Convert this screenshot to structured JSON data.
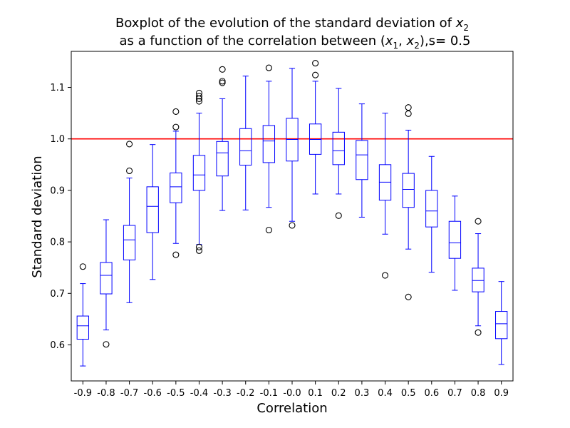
{
  "chart_data": {
    "type": "boxplot",
    "title": {
      "line1_prefix": "Boxplot of the evolution of the standard deviation of ",
      "line1_var": "x",
      "line1_sub": "2",
      "line2_prefix": "as a function of the correlation between (",
      "line2_var1": "x",
      "line2_sub1": "1",
      "line2_sep": ", ",
      "line2_var2": "x",
      "line2_sub2": "2",
      "line2_suffix": "),s= 0.5"
    },
    "xlabel": "Correlation",
    "ylabel": "Standard deviation",
    "ylim": [
      0.53,
      1.17
    ],
    "yticks": [
      0.6,
      0.7,
      0.8,
      0.9,
      1.0,
      1.1
    ],
    "ytick_labels": [
      "0.6",
      "0.7",
      "0.8",
      "0.9",
      "1.0",
      "1.1"
    ],
    "reference_line": {
      "y": 1.0,
      "color": "#ff0000"
    },
    "box_color": "#0000ff",
    "categories": [
      "-0.9",
      "-0.8",
      "-0.7",
      "-0.6",
      "-0.5",
      "-0.4",
      "-0.3",
      "-0.2",
      "-0.1",
      "-0.0",
      "0.1",
      "0.2",
      "0.3",
      "0.4",
      "0.5",
      "0.6",
      "0.7",
      "0.8",
      "0.9"
    ],
    "boxes": [
      {
        "whislo": 0.559,
        "q1": 0.611,
        "med": 0.637,
        "q3": 0.656,
        "whishi": 0.719,
        "fliers": [
          0.752
        ]
      },
      {
        "whislo": 0.629,
        "q1": 0.699,
        "med": 0.735,
        "q3": 0.76,
        "whishi": 0.843,
        "fliers": [
          0.601
        ]
      },
      {
        "whislo": 0.682,
        "q1": 0.765,
        "med": 0.804,
        "q3": 0.832,
        "whishi": 0.924,
        "fliers": [
          0.938,
          0.99
        ]
      },
      {
        "whislo": 0.727,
        "q1": 0.818,
        "med": 0.869,
        "q3": 0.907,
        "whishi": 0.989,
        "fliers": []
      },
      {
        "whislo": 0.797,
        "q1": 0.876,
        "med": 0.907,
        "q3": 0.934,
        "whishi": 1.015,
        "fliers": [
          0.775,
          1.023,
          1.053
        ]
      },
      {
        "whislo": 0.795,
        "q1": 0.9,
        "med": 0.93,
        "q3": 0.968,
        "whishi": 1.05,
        "fliers": [
          0.783,
          0.79,
          1.073,
          1.078,
          1.083,
          1.089
        ]
      },
      {
        "whislo": 0.861,
        "q1": 0.928,
        "med": 0.973,
        "q3": 0.995,
        "whishi": 1.078,
        "fliers": [
          1.109,
          1.112,
          1.135
        ]
      },
      {
        "whislo": 0.862,
        "q1": 0.949,
        "med": 0.977,
        "q3": 1.02,
        "whishi": 1.122,
        "fliers": []
      },
      {
        "whislo": 0.867,
        "q1": 0.954,
        "med": 0.996,
        "q3": 1.026,
        "whishi": 1.112,
        "fliers": [
          0.823,
          1.138
        ]
      },
      {
        "whislo": 0.84,
        "q1": 0.957,
        "med": 0.999,
        "q3": 1.04,
        "whishi": 1.137,
        "fliers": [
          0.832
        ]
      },
      {
        "whislo": 0.893,
        "q1": 0.97,
        "med": 0.999,
        "q3": 1.029,
        "whishi": 1.112,
        "fliers": [
          1.124,
          1.147
        ]
      },
      {
        "whislo": 0.893,
        "q1": 0.95,
        "med": 0.977,
        "q3": 1.013,
        "whishi": 1.098,
        "fliers": [
          0.851
        ]
      },
      {
        "whislo": 0.848,
        "q1": 0.921,
        "med": 0.969,
        "q3": 0.997,
        "whishi": 1.068,
        "fliers": []
      },
      {
        "whislo": 0.815,
        "q1": 0.881,
        "med": 0.916,
        "q3": 0.95,
        "whishi": 1.05,
        "fliers": [
          0.735
        ]
      },
      {
        "whislo": 0.786,
        "q1": 0.867,
        "med": 0.902,
        "q3": 0.933,
        "whishi": 1.017,
        "fliers": [
          0.693,
          1.049,
          1.061
        ]
      },
      {
        "whislo": 0.741,
        "q1": 0.829,
        "med": 0.86,
        "q3": 0.9,
        "whishi": 0.966,
        "fliers": []
      },
      {
        "whislo": 0.706,
        "q1": 0.768,
        "med": 0.798,
        "q3": 0.84,
        "whishi": 0.889,
        "fliers": []
      },
      {
        "whislo": 0.637,
        "q1": 0.703,
        "med": 0.725,
        "q3": 0.749,
        "whishi": 0.816,
        "fliers": [
          0.624,
          0.84
        ]
      },
      {
        "whislo": 0.562,
        "q1": 0.612,
        "med": 0.641,
        "q3": 0.665,
        "whishi": 0.723,
        "fliers": []
      }
    ]
  }
}
